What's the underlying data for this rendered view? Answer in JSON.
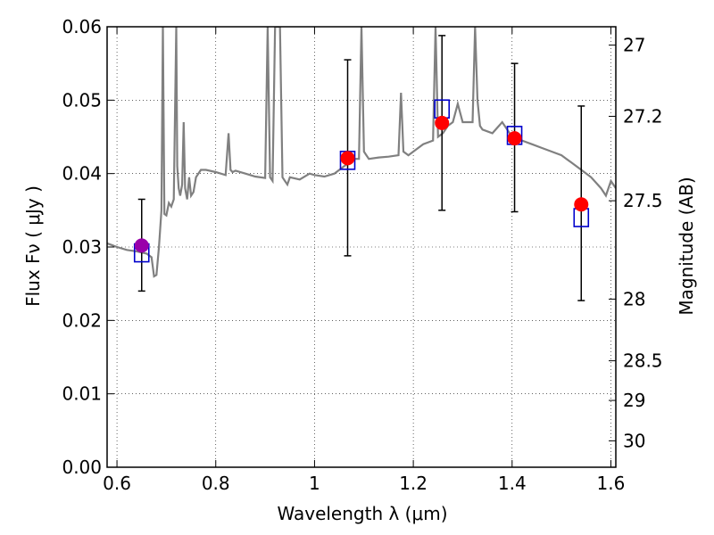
{
  "chart_data": {
    "type": "scatter",
    "title": "",
    "xlabel": "Wavelength  λ (μm)",
    "ylabel": "Flux  Fν  ( μJy )",
    "y2label": "Magnitude (AB)",
    "xlim": [
      0.58,
      1.61
    ],
    "ylim": [
      0.0,
      0.06
    ],
    "grid": true,
    "x_ticks": [
      "0.6",
      "0.8",
      "1",
      "1.2",
      "1.4",
      "1.6"
    ],
    "y_ticks": [
      "0.00",
      "0.01",
      "0.02",
      "0.03",
      "0.04",
      "0.05",
      "0.06"
    ],
    "y2_ticks": [
      {
        "label": "27",
        "flux": 0.0575
      },
      {
        "label": "27.2",
        "flux": 0.0478
      },
      {
        "label": "27.5",
        "flux": 0.0363
      },
      {
        "label": "28",
        "flux": 0.0229
      },
      {
        "label": "28.5",
        "flux": 0.0145
      },
      {
        "label": "29",
        "flux": 0.0091
      },
      {
        "label": "30",
        "flux": 0.0036
      }
    ],
    "colors": {
      "model": "#808080",
      "observed": "#ff0000",
      "observed_first": "#9900aa",
      "model_box": "#0000cc",
      "errorbar": "#000000"
    },
    "model_spectrum": {
      "x": [
        0.58,
        0.6,
        0.62,
        0.64,
        0.66,
        0.67,
        0.675,
        0.68,
        0.685,
        0.69,
        0.693,
        0.696,
        0.7,
        0.705,
        0.71,
        0.715,
        0.72,
        0.722,
        0.725,
        0.728,
        0.732,
        0.735,
        0.738,
        0.742,
        0.746,
        0.75,
        0.755,
        0.76,
        0.77,
        0.78,
        0.8,
        0.82,
        0.826,
        0.83,
        0.834,
        0.84,
        0.86,
        0.88,
        0.9,
        0.905,
        0.91,
        0.915,
        0.92,
        0.93,
        0.935,
        0.94,
        0.945,
        0.95,
        0.97,
        0.99,
        1.0,
        1.02,
        1.04,
        1.06,
        1.07,
        1.08,
        1.09,
        1.095,
        1.1,
        1.105,
        1.11,
        1.13,
        1.15,
        1.17,
        1.175,
        1.18,
        1.19,
        1.2,
        1.22,
        1.24,
        1.245,
        1.25,
        1.26,
        1.27,
        1.28,
        1.29,
        1.3,
        1.32,
        1.325,
        1.33,
        1.335,
        1.34,
        1.36,
        1.38,
        1.4,
        1.42,
        1.44,
        1.46,
        1.48,
        1.5,
        1.52,
        1.54,
        1.56,
        1.58,
        1.59,
        1.6,
        1.61
      ],
      "y": [
        0.0305,
        0.03,
        0.0296,
        0.0294,
        0.0291,
        0.0286,
        0.026,
        0.0262,
        0.03,
        0.035,
        0.06,
        0.0345,
        0.0343,
        0.036,
        0.0355,
        0.0365,
        0.06,
        0.041,
        0.038,
        0.037,
        0.0385,
        0.047,
        0.038,
        0.0365,
        0.0395,
        0.037,
        0.0375,
        0.0395,
        0.0405,
        0.0405,
        0.0402,
        0.0398,
        0.0455,
        0.0405,
        0.0402,
        0.0404,
        0.04,
        0.0396,
        0.0394,
        0.06,
        0.0395,
        0.039,
        0.06,
        0.06,
        0.0395,
        0.039,
        0.0385,
        0.0395,
        0.0392,
        0.04,
        0.0398,
        0.0396,
        0.04,
        0.041,
        0.0415,
        0.042,
        0.042,
        0.06,
        0.043,
        0.0425,
        0.042,
        0.0422,
        0.0423,
        0.0425,
        0.051,
        0.043,
        0.0425,
        0.043,
        0.044,
        0.0445,
        0.06,
        0.045,
        0.0455,
        0.0465,
        0.047,
        0.0495,
        0.047,
        0.047,
        0.06,
        0.05,
        0.0465,
        0.046,
        0.0455,
        0.047,
        0.045,
        0.0445,
        0.044,
        0.0435,
        0.043,
        0.0425,
        0.0415,
        0.0405,
        0.0395,
        0.038,
        0.037,
        0.039,
        0.038
      ]
    },
    "observed": {
      "x": [
        0.65,
        1.067,
        1.258,
        1.405,
        1.54
      ],
      "y": [
        0.0302,
        0.0421,
        0.0469,
        0.0448,
        0.0358
      ],
      "err_low": [
        0.024,
        0.0288,
        0.035,
        0.0348,
        0.0227
      ],
      "err_high": [
        0.0365,
        0.0555,
        0.0588,
        0.055,
        0.0492
      ]
    },
    "model_photometry": {
      "x": [
        0.65,
        1.067,
        1.258,
        1.405,
        1.54
      ],
      "y": [
        0.0292,
        0.0418,
        0.0488,
        0.0452,
        0.034
      ]
    }
  }
}
